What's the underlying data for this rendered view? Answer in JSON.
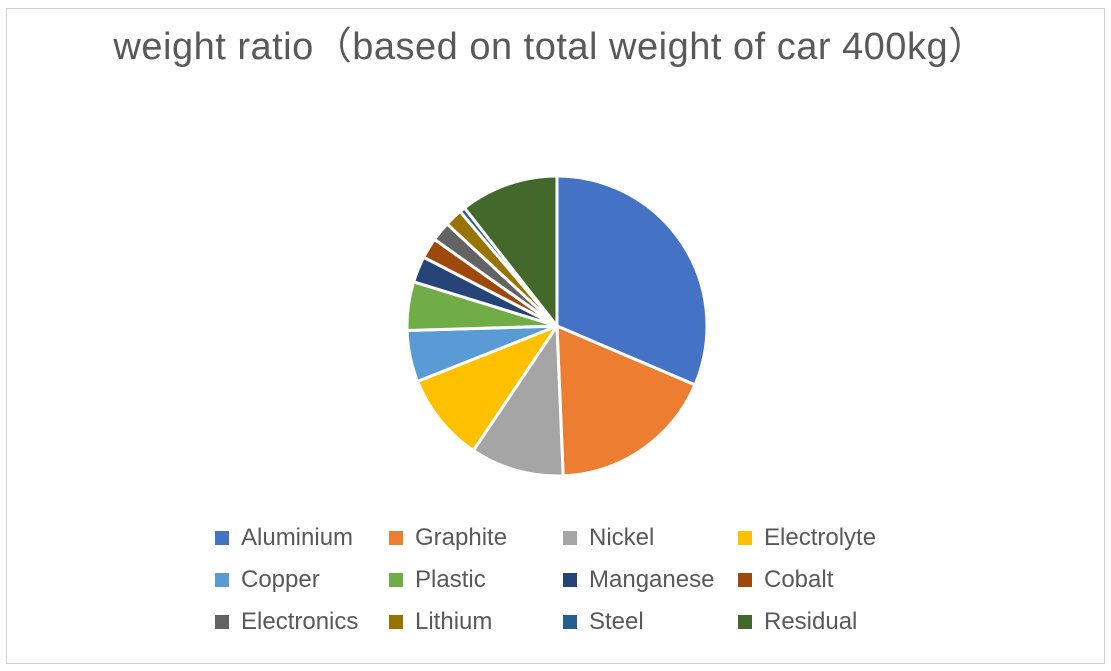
{
  "chart_data": {
    "type": "pie",
    "title": "weight ratio（based on total weight of car 400kg）",
    "legend_position": "bottom",
    "categories": [
      "Aluminium",
      "Graphite",
      "Nickel",
      "Electrolyte",
      "Copper",
      "Plastic",
      "Manganese",
      "Cobalt",
      "Electronics",
      "Lithium",
      "Steel",
      "Residual"
    ],
    "values": [
      31.2,
      17.8,
      10.0,
      9.5,
      5.5,
      5.2,
      2.8,
      2.2,
      2.1,
      1.9,
      0.6,
      10.5
    ],
    "colors": [
      "#4472C4",
      "#ED7D31",
      "#A5A5A5",
      "#FFC000",
      "#5B9BD5",
      "#70AD47",
      "#264478",
      "#9E480E",
      "#636363",
      "#997300",
      "#255E91",
      "#43682B"
    ]
  }
}
